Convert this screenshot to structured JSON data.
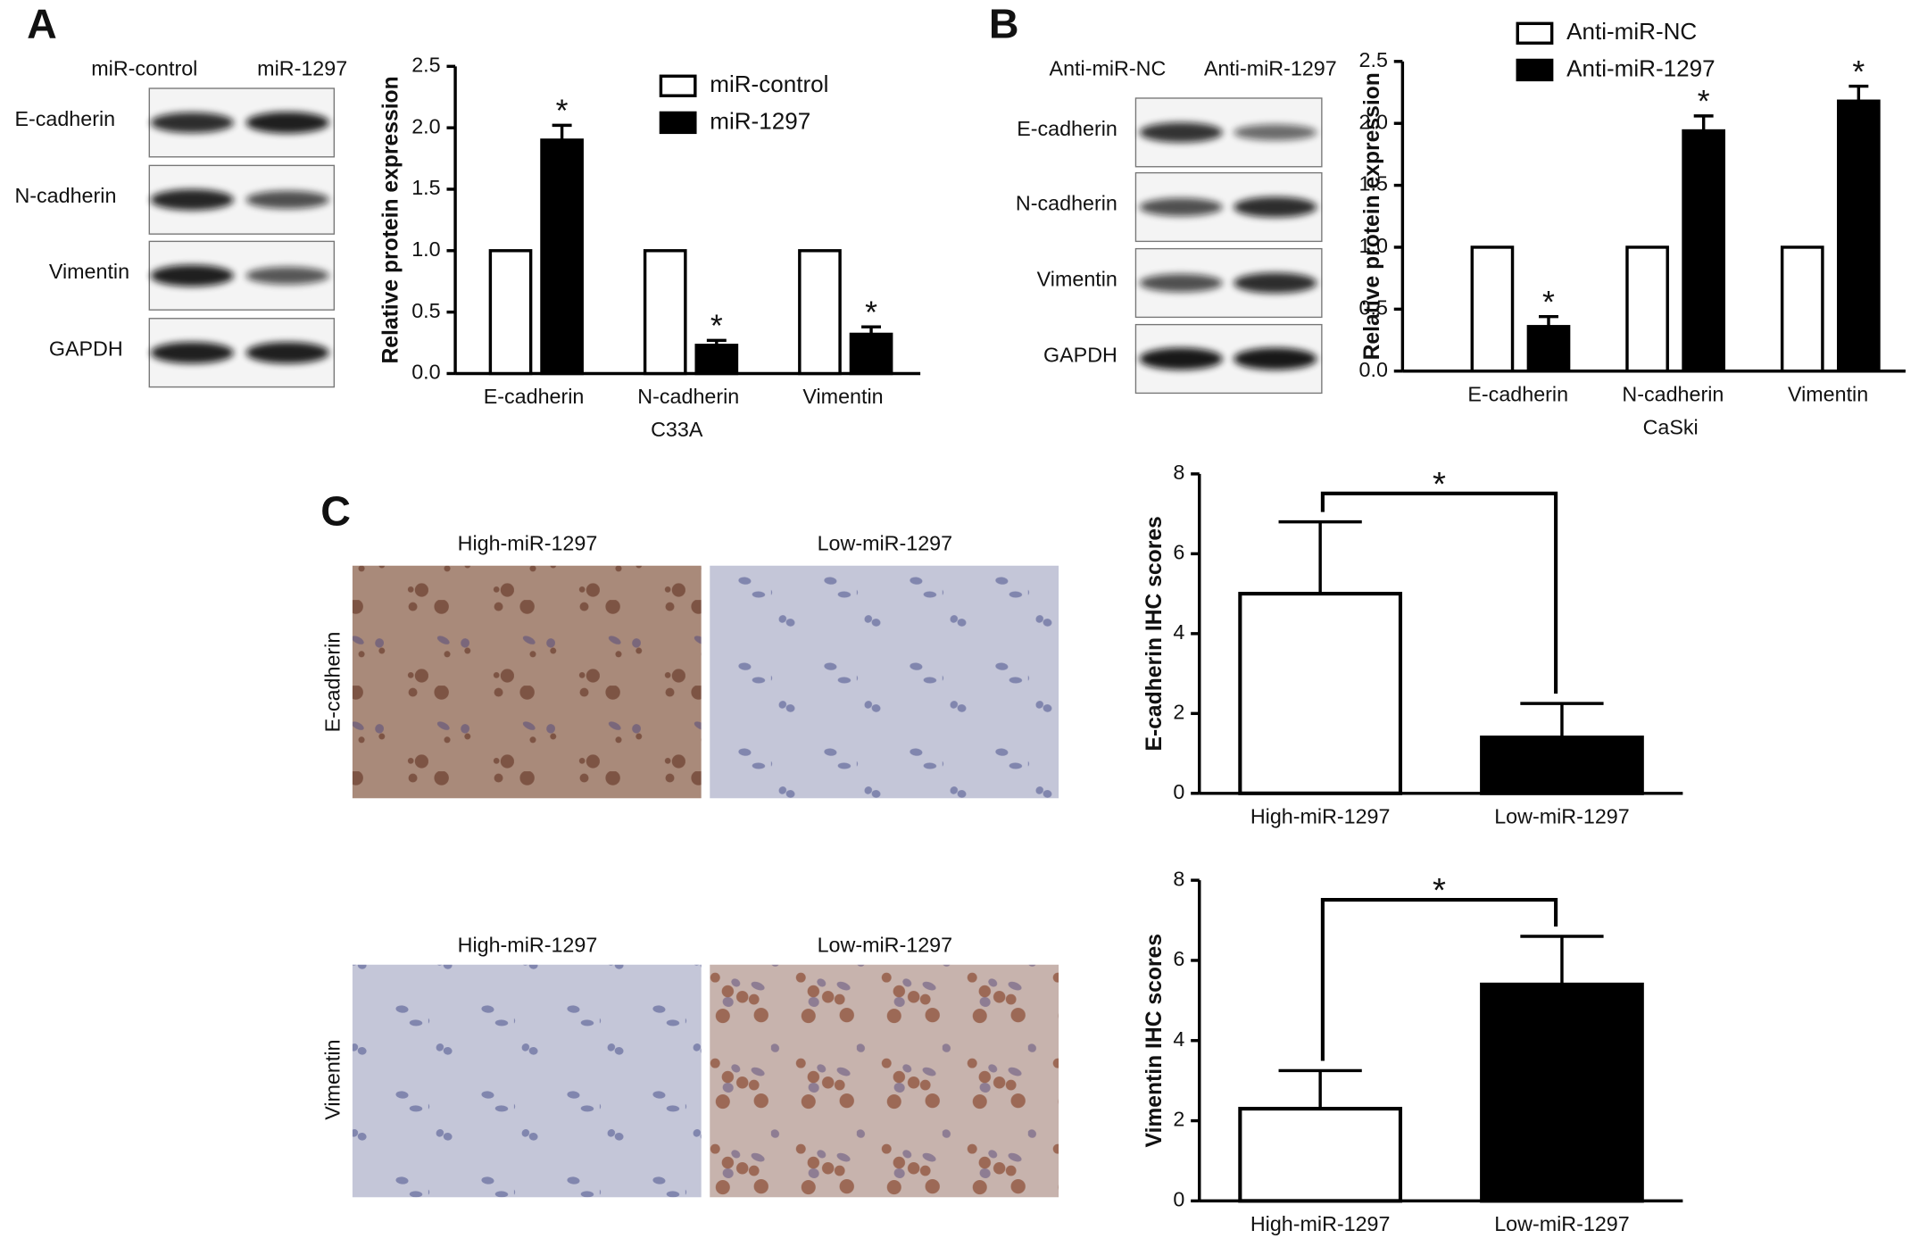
{
  "panel_labels": [
    "A",
    "B",
    "C"
  ],
  "blots": [
    {
      "columns": [
        "miR-control",
        "miR-1297"
      ],
      "rows": [
        "E-cadherin",
        "N-cadherin",
        "Vimentin",
        "GAPDH"
      ]
    },
    {
      "columns": [
        "Anti-miR-NC",
        "Anti-miR-1297"
      ],
      "rows": [
        "E-cadherin",
        "N-cadherin",
        "Vimentin",
        "GAPDH"
      ]
    }
  ],
  "ihc": {
    "rows": [
      "E-cadherin",
      "Vimentin"
    ],
    "columns": [
      [
        "High-miR-1297",
        "Low-miR-1297"
      ],
      [
        "High-miR-1297",
        "Low-miR-1297"
      ]
    ]
  },
  "chart_data": [
    {
      "type": "bar",
      "x_label": "C33A",
      "y_label": "Relative protein expression",
      "categories": [
        "E-cadherin",
        "N-cadherin",
        "Vimentin"
      ],
      "series": [
        {
          "name": "miR-control",
          "color": "#ffffff",
          "values": [
            1,
            1,
            1
          ]
        },
        {
          "name": "miR-1297",
          "color": "#000000",
          "values": [
            1.9,
            0.23,
            0.32
          ],
          "errors": [
            0.12,
            0.04,
            0.06
          ],
          "significance": [
            "*",
            "*",
            "*"
          ]
        }
      ],
      "ylim": [
        0,
        2.5
      ],
      "yticks": [
        {
          "value": 0,
          "label": "0.0"
        },
        0.5,
        {
          "value": 1,
          "label": "1.0"
        },
        1.5,
        {
          "value": 2,
          "label": "2.0"
        },
        2.5
      ]
    },
    {
      "type": "bar",
      "x_label": "CaSki",
      "y_label": "Relative protein expression",
      "categories": [
        "E-cadherin",
        "N-cadherin",
        "Vimentin"
      ],
      "series": [
        {
          "name": "Anti-miR-NC",
          "color": "#ffffff",
          "values": [
            1,
            1,
            1
          ]
        },
        {
          "name": "Anti-miR-1297",
          "color": "#000000",
          "values": [
            0.36,
            1.94,
            2.18
          ],
          "errors": [
            0.08,
            0.12,
            0.12
          ],
          "significance": [
            "*",
            "*",
            "*"
          ]
        }
      ],
      "ylim": [
        0,
        2.5
      ],
      "yticks": [
        {
          "value": 0,
          "label": "0.0"
        },
        0.5,
        {
          "value": 1,
          "label": "1.0"
        },
        1.5,
        {
          "value": 2,
          "label": "2.0"
        },
        2.5
      ]
    },
    {
      "type": "bar",
      "y_label": "E-cadherin IHC scores",
      "categories": [
        "High-miR-1297",
        "Low-miR-1297"
      ],
      "values": [
        5.0,
        1.4
      ],
      "errors": [
        1.8,
        0.85
      ],
      "colors": [
        "#ffffff",
        "#000000"
      ],
      "significance": "*",
      "ylim": [
        0,
        8
      ],
      "yticks": [
        0,
        2,
        4,
        6,
        8
      ]
    },
    {
      "type": "bar",
      "y_label": "Vimentin IHC scores",
      "categories": [
        "High-miR-1297",
        "Low-miR-1297"
      ],
      "values": [
        2.3,
        5.4
      ],
      "errors": [
        0.95,
        1.2
      ],
      "colors": [
        "#ffffff",
        "#000000"
      ],
      "significance": "*",
      "ylim": [
        0,
        8
      ],
      "yticks": [
        0,
        2,
        4,
        6,
        8
      ]
    }
  ]
}
